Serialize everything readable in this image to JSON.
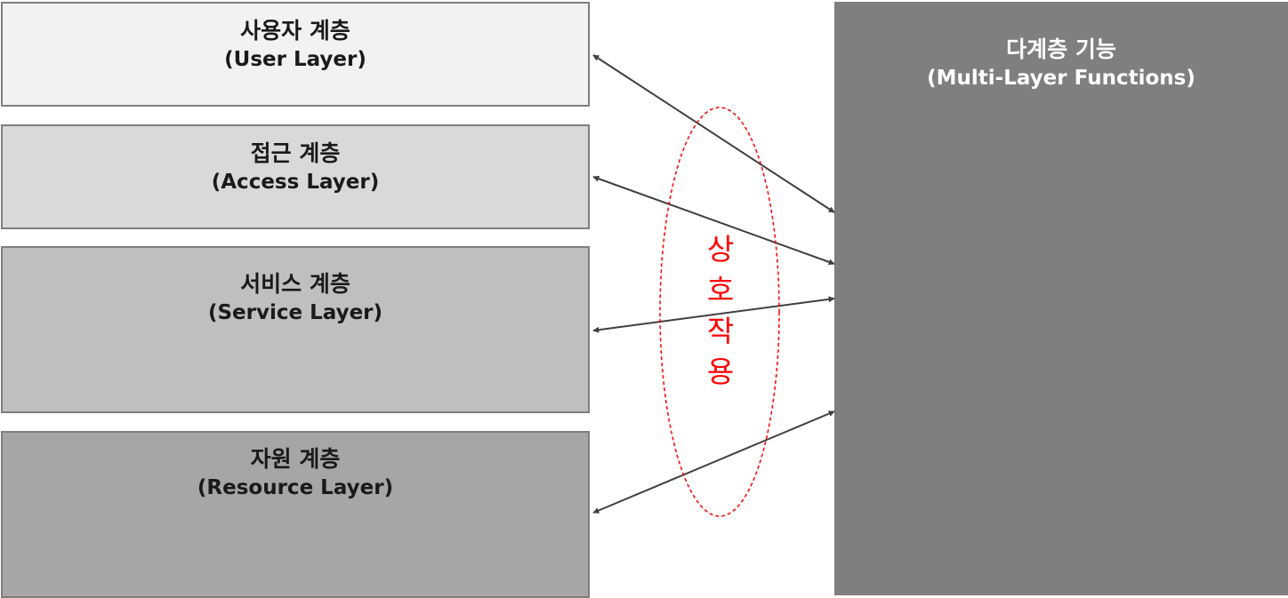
{
  "layers": [
    {
      "ko": "사용자 계층",
      "en": "(User Layer)",
      "fill": "#f2f2f2"
    },
    {
      "ko": "접근 계층",
      "en": "(Access Layer)",
      "fill": "#d9d9d9"
    },
    {
      "ko": "서비스 계층",
      "en": "(Service Layer)",
      "fill": "#bfbfbf"
    },
    {
      "ko": "자원 계층",
      "en": "(Resource Layer)",
      "fill": "#a6a6a6"
    }
  ],
  "multi_layer": {
    "ko": "다계층 기능",
    "en": "(Multi-Layer Functions)",
    "fill": "#7f7f7f"
  },
  "interaction": {
    "chars": [
      "상",
      "호",
      "작",
      "용"
    ],
    "color": "#ff0000"
  },
  "arrow_color": "#404040"
}
